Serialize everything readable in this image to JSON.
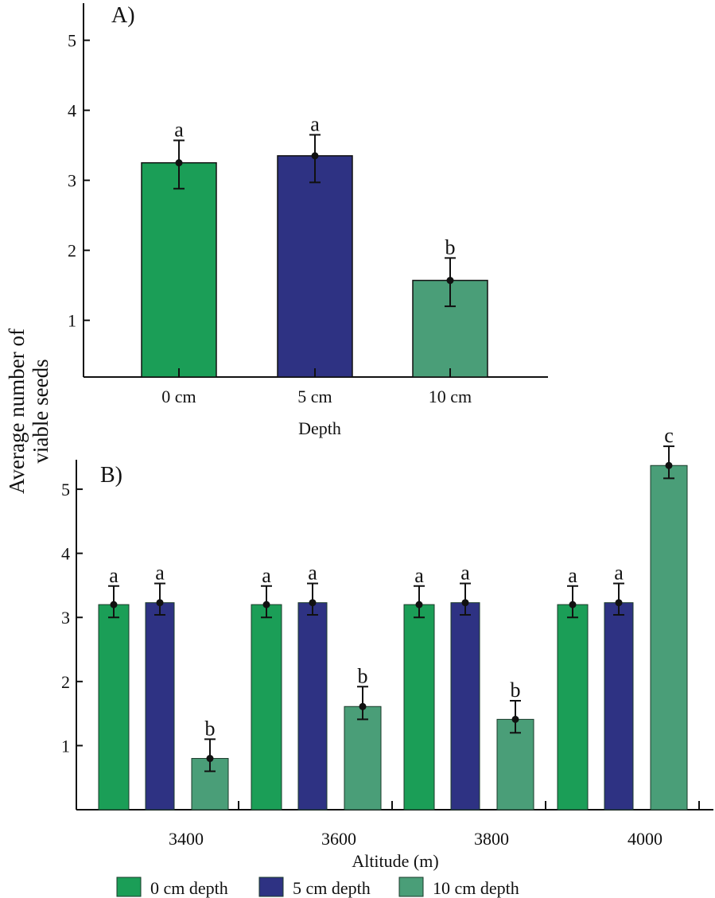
{
  "colors": {
    "d0": "#1b9e57",
    "d5": "#2e3283",
    "d10": "#4a9e78",
    "axis": "#111111"
  },
  "ylabel_lines": [
    "Average number of",
    "viable seeds"
  ],
  "legend": [
    {
      "key": "d0",
      "label": "0 cm depth"
    },
    {
      "key": "d5",
      "label": "5 cm depth"
    },
    {
      "key": "d10",
      "label": "10 cm depth"
    }
  ],
  "chart_data": [
    {
      "type": "bar",
      "panel": "A)",
      "title": "",
      "xlabel": "Depth",
      "ylabel": "Average number of viable seeds",
      "ylim": [
        0.19,
        5.53
      ],
      "yticks": [
        1,
        2,
        3,
        4,
        5
      ],
      "grid": false,
      "categories": [
        "0 cm",
        "5 cm",
        "10 cm"
      ],
      "series_keys": [
        "d0",
        "d5",
        "d10"
      ],
      "values": [
        3.25,
        3.35,
        1.57
      ],
      "err_high": [
        3.57,
        3.65,
        1.89
      ],
      "err_low": [
        2.88,
        2.97,
        1.2
      ],
      "letters": [
        "a",
        "a",
        "b"
      ]
    },
    {
      "type": "bar",
      "panel": "B)",
      "title": "",
      "xlabel": "Altitude (m)",
      "ylabel": "Average number of viable seeds",
      "ylim": [
        0,
        5.46
      ],
      "yticks": [
        1,
        2,
        3,
        4,
        5
      ],
      "grid": false,
      "legend_position": "bottom",
      "categories": [
        "3400",
        "3600",
        "3800",
        "4000"
      ],
      "series": [
        {
          "name": "0 cm depth",
          "key": "d0",
          "values": [
            3.2,
            3.2,
            3.2,
            3.2
          ],
          "err_high": [
            3.49,
            3.49,
            3.49,
            3.49
          ],
          "err_low": [
            3.0,
            3.0,
            3.0,
            3.0
          ],
          "letters": [
            "a",
            "a",
            "a",
            "a"
          ]
        },
        {
          "name": "5 cm depth",
          "key": "d5",
          "values": [
            3.23,
            3.23,
            3.23,
            3.23
          ],
          "err_high": [
            3.53,
            3.53,
            3.53,
            3.53
          ],
          "err_low": [
            3.04,
            3.04,
            3.04,
            3.04
          ],
          "letters": [
            "a",
            "a",
            "a",
            "a"
          ]
        },
        {
          "name": "10 cm depth",
          "key": "d10",
          "values": [
            0.8,
            1.61,
            1.41,
            5.37
          ],
          "err_high": [
            1.1,
            1.92,
            1.7,
            5.67
          ],
          "err_low": [
            0.6,
            1.41,
            1.2,
            5.17
          ],
          "letters": [
            "b",
            "b",
            "b",
            "c"
          ]
        }
      ]
    }
  ]
}
